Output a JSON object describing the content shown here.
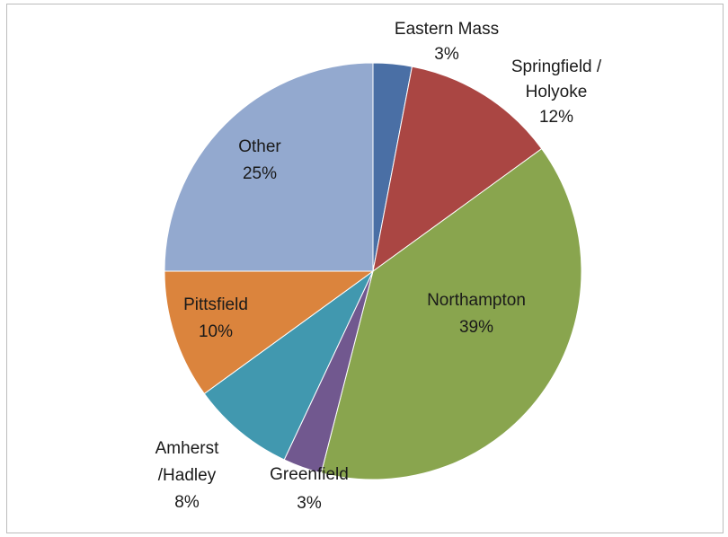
{
  "chart_data": {
    "type": "pie",
    "title": "",
    "slices": [
      {
        "label_lines": [
          "Eastern Mass",
          "3%"
        ],
        "value": 3,
        "color": "#4a6fa5"
      },
      {
        "label_lines": [
          "Springfield /",
          "Holyoke",
          "12%"
        ],
        "value": 12,
        "color": "#aa4643"
      },
      {
        "label_lines": [
          "Northampton",
          "39%"
        ],
        "value": 39,
        "color": "#89a54e"
      },
      {
        "label_lines": [
          "Greenfield",
          "3%"
        ],
        "value": 3,
        "color": "#71588f"
      },
      {
        "label_lines": [
          "Amherst",
          "/Hadley",
          "8%"
        ],
        "value": 8,
        "color": "#4198af"
      },
      {
        "label_lines": [
          "Pittsfield",
          "10%"
        ],
        "value": 10,
        "color": "#db843d"
      },
      {
        "label_lines": [
          "Other",
          "25%"
        ],
        "value": 25,
        "color": "#93a9cf"
      }
    ],
    "start_angle_deg": 0,
    "direction": "clockwise",
    "legend": "none",
    "label_placement": "mixed (inside and outside slices)"
  }
}
